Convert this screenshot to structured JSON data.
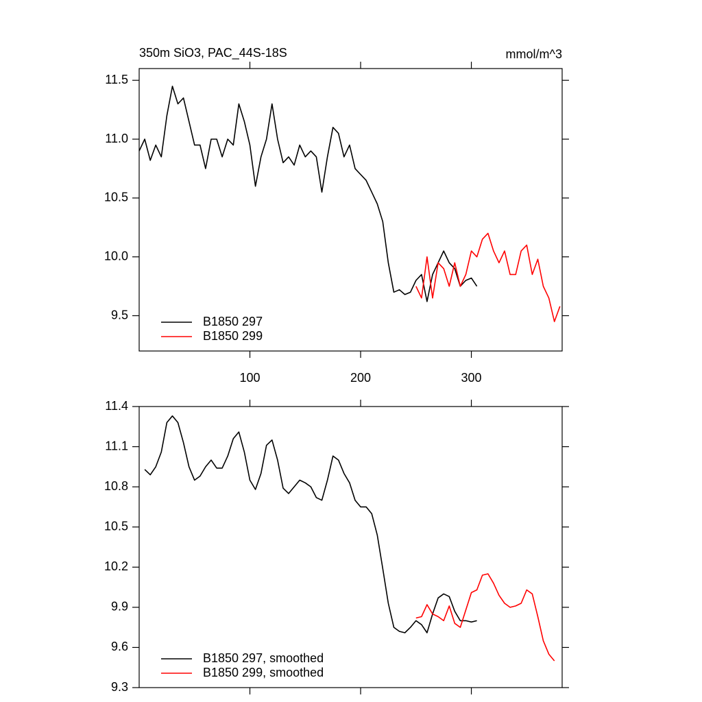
{
  "chart_data": [
    {
      "type": "line",
      "title": "350m SiO3, PAC_44S-18S",
      "units": "mmol/m^3",
      "x": [
        0,
        5,
        10,
        15,
        20,
        25,
        30,
        35,
        40,
        45,
        50,
        55,
        60,
        65,
        70,
        75,
        80,
        85,
        90,
        95,
        100,
        105,
        110,
        115,
        120,
        125,
        130,
        135,
        140,
        145,
        150,
        155,
        160,
        165,
        170,
        175,
        180,
        185,
        190,
        195,
        200,
        205,
        210,
        215,
        220,
        225,
        230,
        235,
        240,
        245,
        250,
        255,
        260,
        265,
        270,
        275,
        280,
        285,
        290,
        295,
        300,
        305,
        310,
        315,
        320,
        325,
        330,
        335,
        340,
        345,
        350,
        355,
        360,
        365,
        370,
        375,
        380
      ],
      "series": [
        {
          "name": "B1850 297",
          "color": "#000000",
          "values": [
            10.9,
            11.0,
            10.82,
            10.95,
            10.85,
            11.2,
            11.45,
            11.3,
            11.35,
            11.15,
            10.95,
            10.95,
            10.75,
            11.0,
            11.0,
            10.85,
            11.0,
            10.95,
            11.3,
            11.15,
            10.95,
            10.6,
            10.85,
            11.0,
            11.3,
            11.0,
            10.8,
            10.85,
            10.78,
            10.95,
            10.85,
            10.9,
            10.85,
            10.55,
            10.85,
            11.1,
            11.05,
            10.85,
            10.95,
            10.75,
            10.7,
            10.65,
            10.55,
            10.45,
            10.3,
            9.95,
            9.7,
            9.72,
            9.68,
            9.7,
            9.8,
            9.85,
            9.62,
            9.85,
            9.95,
            10.05,
            9.95,
            9.9,
            9.75,
            9.8,
            9.82,
            9.75,
            null,
            null,
            null,
            null,
            null,
            null,
            null,
            null,
            null,
            null,
            null,
            null,
            null,
            null,
            null
          ]
        },
        {
          "name": "B1850 299",
          "color": "#ff0000",
          "values": [
            null,
            null,
            null,
            null,
            null,
            null,
            null,
            null,
            null,
            null,
            null,
            null,
            null,
            null,
            null,
            null,
            null,
            null,
            null,
            null,
            null,
            null,
            null,
            null,
            null,
            null,
            null,
            null,
            null,
            null,
            null,
            null,
            null,
            null,
            null,
            null,
            null,
            null,
            null,
            null,
            null,
            null,
            null,
            null,
            null,
            null,
            null,
            null,
            null,
            null,
            9.75,
            9.65,
            10.0,
            9.65,
            9.95,
            9.9,
            9.75,
            9.95,
            9.75,
            9.85,
            10.05,
            10.0,
            10.15,
            10.2,
            10.05,
            9.95,
            10.05,
            9.85,
            9.85,
            10.05,
            10.1,
            9.85,
            9.98,
            9.75,
            9.65,
            9.45,
            9.58
          ]
        }
      ],
      "xlim": [
        0,
        382
      ],
      "xticks": [
        100,
        200,
        300
      ],
      "ylim": [
        9.2,
        11.6
      ],
      "yticks": [
        9.5,
        {
          "value": 10,
          "label": "10.0"
        },
        10.5,
        {
          "value": 11,
          "label": "11.0"
        },
        11.5
      ],
      "legend": "lower left"
    },
    {
      "type": "line",
      "x": [
        0,
        5,
        10,
        15,
        20,
        25,
        30,
        35,
        40,
        45,
        50,
        55,
        60,
        65,
        70,
        75,
        80,
        85,
        90,
        95,
        100,
        105,
        110,
        115,
        120,
        125,
        130,
        135,
        140,
        145,
        150,
        155,
        160,
        165,
        170,
        175,
        180,
        185,
        190,
        195,
        200,
        205,
        210,
        215,
        220,
        225,
        230,
        235,
        240,
        245,
        250,
        255,
        260,
        265,
        270,
        275,
        280,
        285,
        290,
        295,
        300,
        305,
        310,
        315,
        320,
        325,
        330,
        335,
        340,
        345,
        350,
        355,
        360,
        365,
        370,
        375,
        380
      ],
      "series": [
        {
          "name": "B1850 297, smoothed",
          "color": "#000000",
          "values": [
            null,
            10.93,
            10.89,
            10.95,
            11.06,
            11.28,
            11.33,
            11.28,
            11.13,
            10.95,
            10.85,
            10.88,
            10.95,
            11.0,
            10.94,
            10.94,
            11.03,
            11.16,
            11.21,
            11.06,
            10.85,
            10.78,
            10.9,
            11.11,
            11.15,
            11.0,
            10.79,
            10.75,
            10.8,
            10.85,
            10.83,
            10.8,
            10.72,
            10.7,
            10.85,
            11.03,
            11.0,
            10.9,
            10.83,
            10.7,
            10.65,
            10.65,
            10.6,
            10.44,
            10.19,
            9.93,
            9.75,
            9.72,
            9.71,
            9.75,
            9.8,
            9.77,
            9.71,
            9.85,
            9.97,
            10.0,
            9.98,
            9.87,
            9.8,
            9.8,
            9.79,
            9.8,
            null,
            null,
            null,
            null,
            null,
            null,
            null,
            null,
            null,
            null,
            null,
            null,
            null,
            null,
            null
          ]
        },
        {
          "name": "B1850 299, smoothed",
          "color": "#ff0000",
          "values": [
            null,
            null,
            null,
            null,
            null,
            null,
            null,
            null,
            null,
            null,
            null,
            null,
            null,
            null,
            null,
            null,
            null,
            null,
            null,
            null,
            null,
            null,
            null,
            null,
            null,
            null,
            null,
            null,
            null,
            null,
            null,
            null,
            null,
            null,
            null,
            null,
            null,
            null,
            null,
            null,
            null,
            null,
            null,
            null,
            null,
            null,
            null,
            null,
            null,
            null,
            9.82,
            9.83,
            9.92,
            9.85,
            9.83,
            9.8,
            9.91,
            9.78,
            9.75,
            9.88,
            10.01,
            10.03,
            10.14,
            10.15,
            10.08,
            9.99,
            9.93,
            9.9,
            9.91,
            9.93,
            10.03,
            10.0,
            9.83,
            9.65,
            9.55,
            9.5,
            null
          ]
        }
      ],
      "xlim": [
        0,
        382
      ],
      "xticks": [
        100,
        200,
        300
      ],
      "show_xtick_labels": false,
      "ylim": [
        9.3,
        11.4
      ],
      "yticks": [
        9.3,
        9.6,
        9.9,
        10.2,
        10.5,
        10.8,
        11.1,
        11.4
      ],
      "legend": "lower left"
    }
  ]
}
